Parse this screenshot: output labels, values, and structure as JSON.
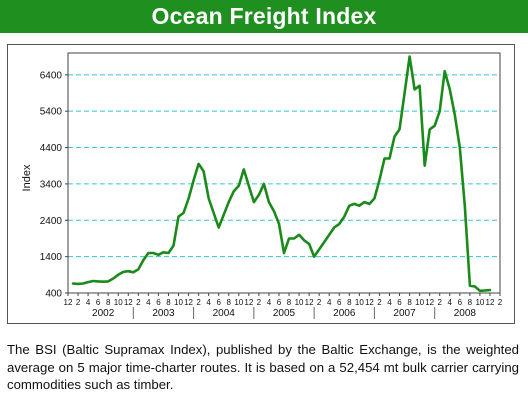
{
  "header": {
    "title": "Ocean Freight Index"
  },
  "caption": "The BSI (Baltic Supramax Index), published by the Baltic Exchange, is the weighted average on 5 major time-charter routes. It is based on a 52,454 mt bulk carrier carrying commodities such as timber.",
  "colors": {
    "header_bg": "#1f8f1f",
    "line": "#1a8a1a",
    "grid": "#33c7d4"
  },
  "chart_data": {
    "type": "line",
    "title": "",
    "xlabel": "",
    "ylabel": "Index",
    "ylim": [
      400,
      7000
    ],
    "yticks": [
      400,
      1400,
      2400,
      3400,
      4400,
      5400,
      6400
    ],
    "grid": "horizontal dashed",
    "month_tick_labels": [
      "12",
      "2",
      "4",
      "6",
      "8",
      "10",
      "12",
      "2",
      "4",
      "6",
      "8",
      "10",
      "12",
      "2",
      "4",
      "6",
      "8",
      "10",
      "12",
      "2",
      "4",
      "6",
      "8",
      "10",
      "12",
      "2",
      "4",
      "6",
      "8",
      "10",
      "12",
      "2",
      "4",
      "6",
      "8",
      "10",
      "12",
      "2",
      "4",
      "6",
      "8",
      "10",
      "12",
      "2"
    ],
    "year_labels": [
      "2002",
      "2003",
      "2004",
      "2005",
      "2006",
      "2007",
      "2008"
    ],
    "x_start": "2001-12",
    "x_end": "2009-02",
    "series": [
      {
        "values": [
          [
            "2002-01",
            660
          ],
          [
            "2002-02",
            650
          ],
          [
            "2002-03",
            660
          ],
          [
            "2002-04",
            700
          ],
          [
            "2002-05",
            730
          ],
          [
            "2002-06",
            720
          ],
          [
            "2002-07",
            710
          ],
          [
            "2002-08",
            720
          ],
          [
            "2002-09",
            800
          ],
          [
            "2002-10",
            900
          ],
          [
            "2002-11",
            980
          ],
          [
            "2002-12",
            1000
          ],
          [
            "2003-01",
            970
          ],
          [
            "2003-02",
            1050
          ],
          [
            "2003-03",
            1300
          ],
          [
            "2003-04",
            1500
          ],
          [
            "2003-05",
            1500
          ],
          [
            "2003-06",
            1450
          ],
          [
            "2003-07",
            1520
          ],
          [
            "2003-08",
            1500
          ],
          [
            "2003-09",
            1700
          ],
          [
            "2003-10",
            2500
          ],
          [
            "2003-11",
            2600
          ],
          [
            "2003-12",
            3000
          ],
          [
            "2004-01",
            3500
          ],
          [
            "2004-02",
            3950
          ],
          [
            "2004-03",
            3750
          ],
          [
            "2004-04",
            3000
          ],
          [
            "2004-05",
            2600
          ],
          [
            "2004-06",
            2200
          ],
          [
            "2004-07",
            2550
          ],
          [
            "2004-08",
            2900
          ],
          [
            "2004-09",
            3200
          ],
          [
            "2004-10",
            3350
          ],
          [
            "2004-11",
            3800
          ],
          [
            "2004-12",
            3350
          ],
          [
            "2005-01",
            2900
          ],
          [
            "2005-02",
            3100
          ],
          [
            "2005-03",
            3400
          ],
          [
            "2005-04",
            2900
          ],
          [
            "2005-05",
            2650
          ],
          [
            "2005-06",
            2300
          ],
          [
            "2005-07",
            1500
          ],
          [
            "2005-08",
            1900
          ],
          [
            "2005-09",
            1900
          ],
          [
            "2005-10",
            2000
          ],
          [
            "2005-11",
            1850
          ],
          [
            "2005-12",
            1750
          ],
          [
            "2006-01",
            1400
          ],
          [
            "2006-02",
            1600
          ],
          [
            "2006-03",
            1800
          ],
          [
            "2006-04",
            2000
          ],
          [
            "2006-05",
            2200
          ],
          [
            "2006-06",
            2300
          ],
          [
            "2006-07",
            2500
          ],
          [
            "2006-08",
            2800
          ],
          [
            "2006-09",
            2850
          ],
          [
            "2006-10",
            2800
          ],
          [
            "2006-11",
            2900
          ],
          [
            "2006-12",
            2850
          ],
          [
            "2007-01",
            3000
          ],
          [
            "2007-02",
            3500
          ],
          [
            "2007-03",
            4100
          ],
          [
            "2007-04",
            4100
          ],
          [
            "2007-05",
            4700
          ],
          [
            "2007-06",
            4900
          ],
          [
            "2007-07",
            5900
          ],
          [
            "2007-08",
            6900
          ],
          [
            "2007-09",
            6000
          ],
          [
            "2007-10",
            6100
          ],
          [
            "2007-11",
            3900
          ],
          [
            "2007-12",
            4900
          ],
          [
            "2008-01",
            5000
          ],
          [
            "2008-02",
            5400
          ],
          [
            "2008-03",
            6500
          ],
          [
            "2008-04",
            6000
          ],
          [
            "2008-05",
            5300
          ],
          [
            "2008-06",
            4400
          ],
          [
            "2008-07",
            2800
          ],
          [
            "2008-08",
            600
          ],
          [
            "2008-09",
            580
          ],
          [
            "2008-10",
            460
          ],
          [
            "2008-11",
            470
          ],
          [
            "2008-12",
            480
          ]
        ]
      }
    ]
  }
}
